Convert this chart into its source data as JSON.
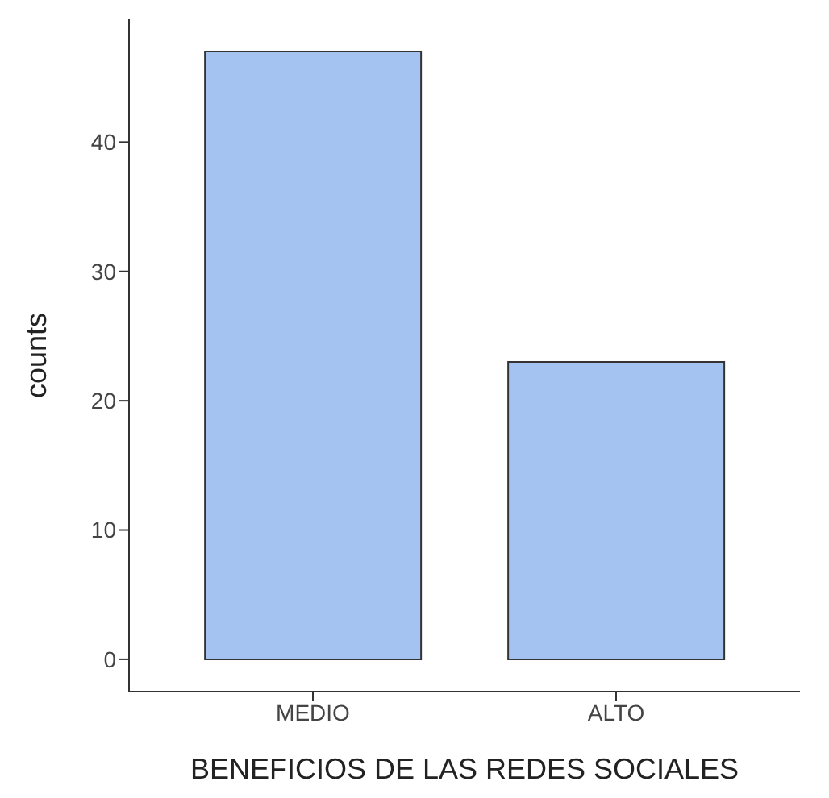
{
  "chart_data": {
    "type": "bar",
    "xlabel": "BENEFICIOS DE LAS REDES SOCIALES",
    "ylabel": "counts",
    "categories": [
      "MEDIO",
      "ALTO"
    ],
    "series": [
      {
        "color": "#a4c3f1",
        "values": [
          47,
          23
        ]
      }
    ],
    "ylim": [
      -2.5,
      49.5
    ],
    "yticks": [
      0,
      10,
      20,
      30,
      40
    ],
    "grid": false,
    "legend": false
  }
}
